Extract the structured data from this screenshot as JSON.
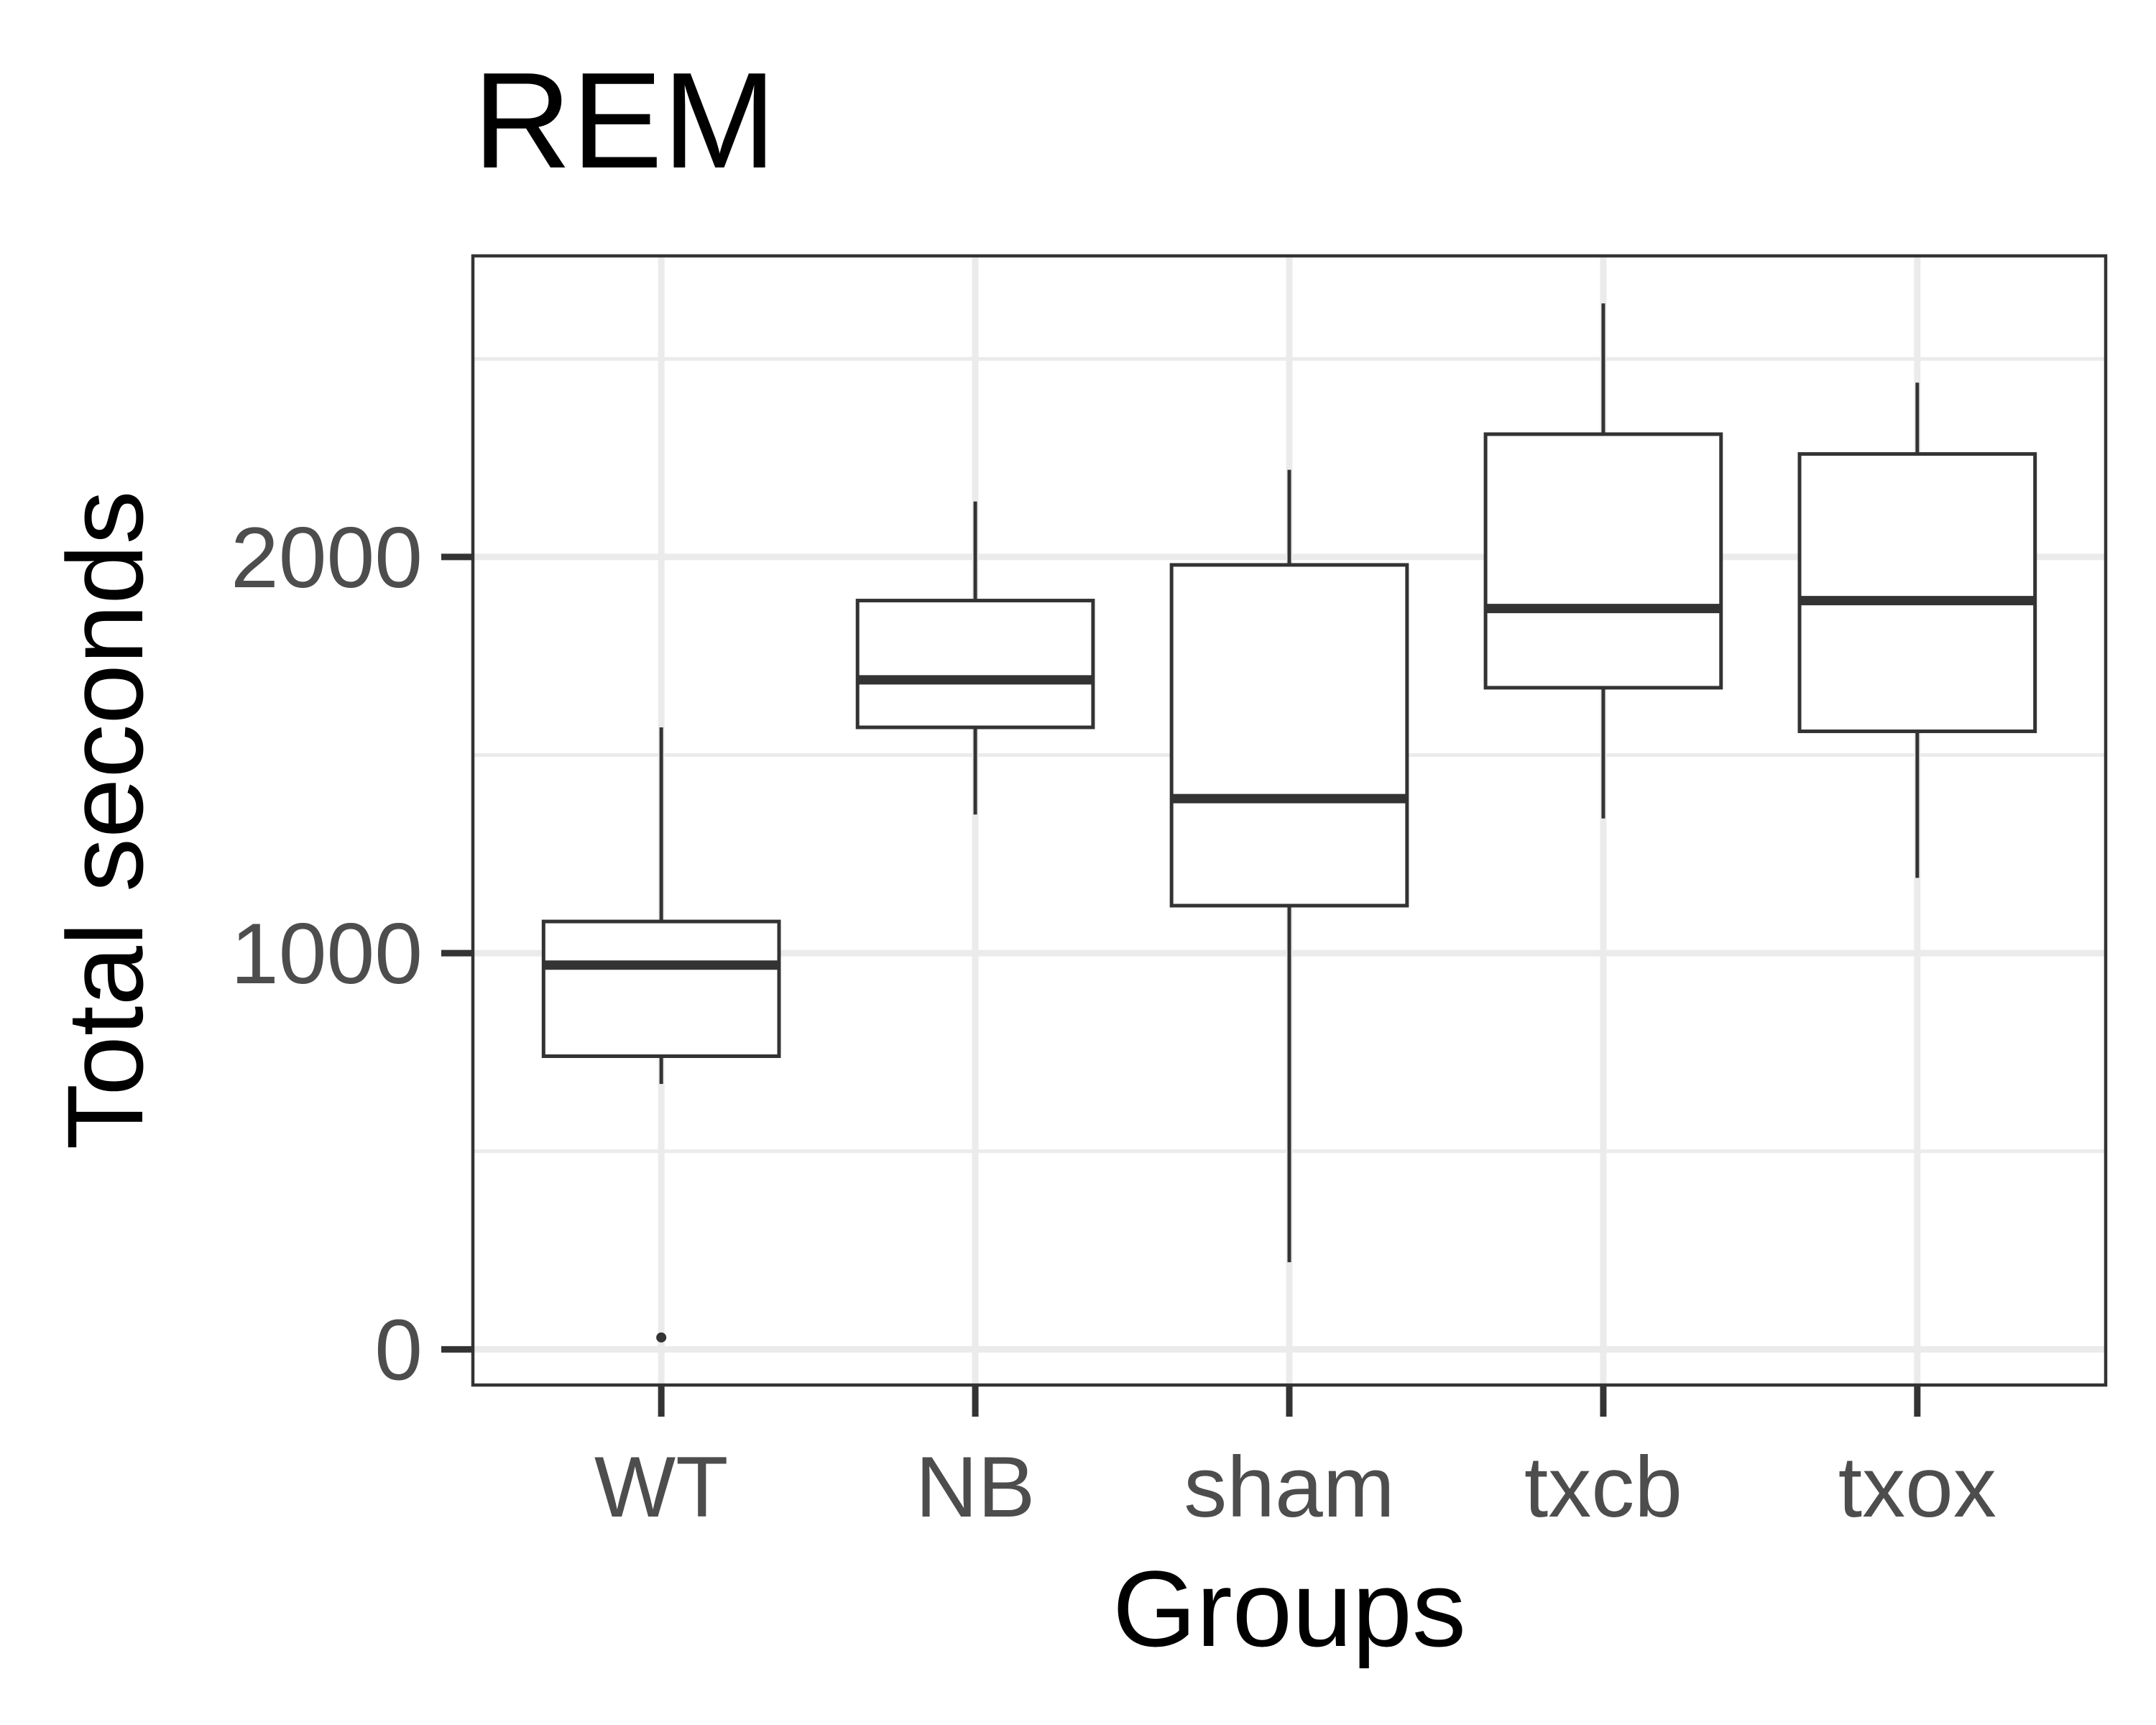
{
  "chart_data": {
    "type": "boxplot",
    "title": "REM",
    "xlabel": "Groups",
    "ylabel": "Total seconds",
    "ylim": [
      -90,
      2760
    ],
    "yticks": [
      0,
      1000,
      2000
    ],
    "ytick_labels": [
      "0",
      "1000",
      "2000"
    ],
    "grid": true,
    "categories": [
      "WT",
      "NB",
      "sham",
      "txcb",
      "txox"
    ],
    "boxes": [
      {
        "category": "WT",
        "whisker_low": 670,
        "q1": 740,
        "median": 970,
        "q3": 1080,
        "whisker_high": 1570,
        "outliers": [
          30
        ]
      },
      {
        "category": "NB",
        "whisker_low": 1350,
        "q1": 1570,
        "median": 1690,
        "q3": 1890,
        "whisker_high": 2140,
        "outliers": []
      },
      {
        "category": "sham",
        "whisker_low": 220,
        "q1": 1120,
        "median": 1390,
        "q3": 1980,
        "whisker_high": 2220,
        "outliers": []
      },
      {
        "category": "txcb",
        "whisker_low": 1340,
        "q1": 1670,
        "median": 1870,
        "q3": 2310,
        "whisker_high": 2640,
        "outliers": []
      },
      {
        "category": "txox",
        "whisker_low": 1190,
        "q1": 1560,
        "median": 1890,
        "q3": 2260,
        "whisker_high": 2440,
        "outliers": []
      }
    ],
    "colors": {
      "box_line": "#333333",
      "grid": "#ebebeb",
      "panel_border": "#333333",
      "tick_text": "#4d4d4d",
      "title_text": "#000000"
    }
  }
}
